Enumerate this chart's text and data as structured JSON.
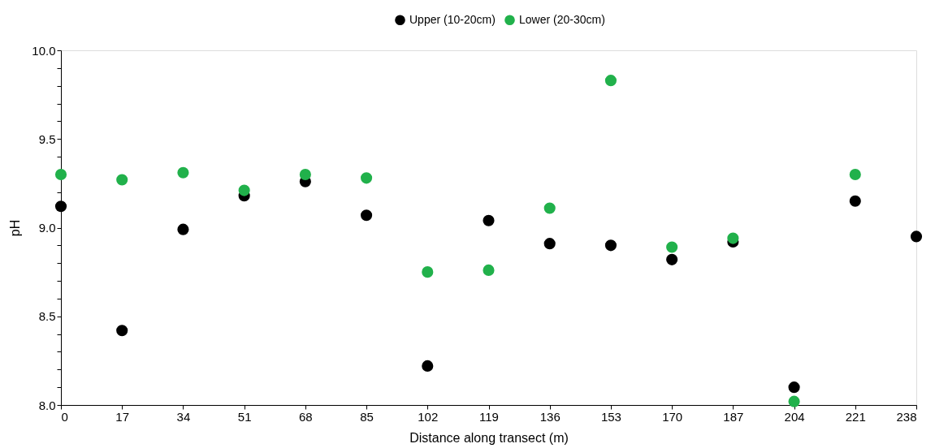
{
  "chart_data": {
    "type": "scatter",
    "xlabel": "Distance along transect (m)",
    "ylabel": "pH",
    "x": [
      0,
      17,
      34,
      51,
      68,
      85,
      102,
      119,
      136,
      153,
      170,
      187,
      204,
      221,
      238
    ],
    "series": [
      {
        "name": "Upper (10-20cm)",
        "color": "#000000",
        "values": [
          9.12,
          8.42,
          8.99,
          9.18,
          9.26,
          9.07,
          8.22,
          9.04,
          8.91,
          8.9,
          8.82,
          8.92,
          8.1,
          9.15,
          8.95
        ]
      },
      {
        "name": "Lower (20-30cm)",
        "color": "#21b14b",
        "values": [
          9.3,
          9.27,
          9.31,
          9.21,
          9.3,
          9.28,
          8.75,
          8.76,
          9.11,
          9.83,
          8.89,
          8.94,
          8.02,
          9.3,
          null
        ]
      }
    ],
    "xlim": [
      0,
      238
    ],
    "xticks": [
      0,
      17,
      34,
      51,
      68,
      85,
      102,
      119,
      136,
      153,
      170,
      187,
      204,
      221,
      238
    ],
    "ylim": [
      8.0,
      10.0
    ],
    "yticks": [
      {
        "value": 8.0,
        "label": "8.0"
      },
      {
        "value": 8.1,
        "label": null
      },
      {
        "value": 8.2,
        "label": null
      },
      {
        "value": 8.3,
        "label": null
      },
      {
        "value": 8.4,
        "label": null
      },
      {
        "value": 8.5,
        "label": "8.5"
      },
      {
        "value": 8.6,
        "label": null
      },
      {
        "value": 8.7,
        "label": null
      },
      {
        "value": 8.8,
        "label": null
      },
      {
        "value": 8.9,
        "label": null
      },
      {
        "value": 9.0,
        "label": "9.0"
      },
      {
        "value": 9.1,
        "label": null
      },
      {
        "value": 9.2,
        "label": null
      },
      {
        "value": 9.3,
        "label": null
      },
      {
        "value": 9.4,
        "label": null
      },
      {
        "value": 9.5,
        "label": "9.5"
      },
      {
        "value": 9.6,
        "label": null
      },
      {
        "value": 9.7,
        "label": null
      },
      {
        "value": 9.8,
        "label": null
      },
      {
        "value": 9.9,
        "label": null
      },
      {
        "value": 10.0,
        "label": "10.0"
      }
    ],
    "legend": "top",
    "marker": "circle",
    "grid": false
  }
}
